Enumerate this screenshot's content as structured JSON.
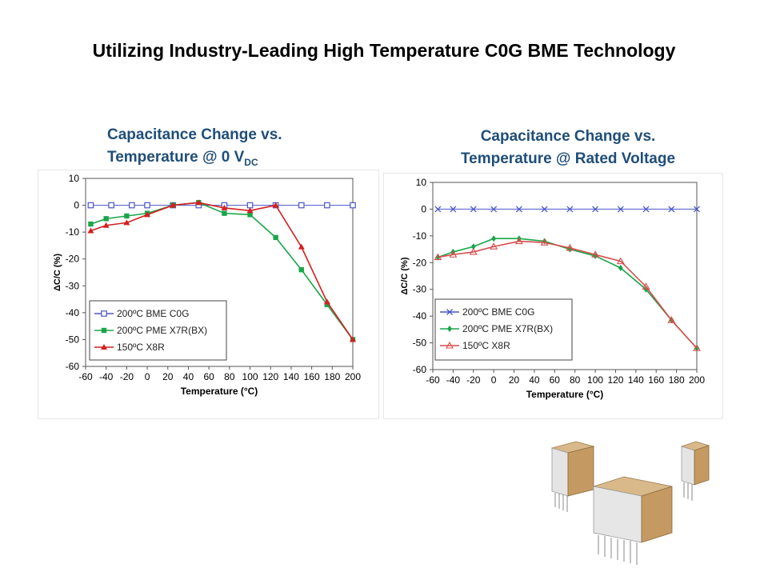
{
  "slide": {
    "title": "Utilizing Industry-Leading High Temperature C0G BME Technology"
  },
  "left_heading": {
    "line1": "Capacitance Change vs.",
    "line2": "Temperature @ 0 V",
    "sub": "DC"
  },
  "right_heading": {
    "line1": "Capacitance Change vs.",
    "line2": "Temperature @ Rated Voltage"
  },
  "colors": {
    "heading": "#1f4e79",
    "c0g": "#4a55c8",
    "x7r": "#1aa64a",
    "x8r_left": "#d42020",
    "x8r_right": "#d84b4b"
  },
  "chart_data": [
    {
      "type": "line",
      "xlabel": "Temperature (°C)",
      "ylabel": "ΔC/C (%)",
      "xlim": [
        -60,
        200
      ],
      "ylim": [
        -60,
        10
      ],
      "xticks": [
        -60,
        -40,
        -20,
        0,
        20,
        40,
        60,
        80,
        100,
        120,
        140,
        160,
        180,
        200
      ],
      "yticks": [
        10,
        0,
        -10,
        -20,
        -30,
        -40,
        -50,
        -60
      ],
      "legend_position": "bottom-left",
      "series": [
        {
          "name": "200ºC BME C0G",
          "marker": "square-open",
          "x": [
            -55,
            -35,
            -15,
            0,
            25,
            50,
            75,
            100,
            125,
            150,
            175,
            200
          ],
          "y": [
            0,
            0,
            0,
            0,
            0,
            0,
            0,
            0,
            0,
            0,
            0,
            0
          ]
        },
        {
          "name": "200ºC PME X7R(BX)",
          "marker": "square",
          "x": [
            -55,
            -40,
            -20,
            0,
            25,
            50,
            75,
            100,
            125,
            150,
            175,
            200
          ],
          "y": [
            -7,
            -5,
            -4,
            -3,
            0,
            1,
            -3,
            -3.5,
            -12,
            -24,
            -37,
            -50
          ]
        },
        {
          "name": "150ºC X8R",
          "marker": "triangle",
          "x": [
            -55,
            -40,
            -20,
            0,
            25,
            50,
            75,
            100,
            125,
            150,
            175,
            200
          ],
          "y": [
            -9.5,
            -7.5,
            -6.5,
            -3.5,
            0,
            1,
            -1,
            -2,
            0,
            -15.5,
            -36,
            -50
          ]
        }
      ]
    },
    {
      "type": "line",
      "xlabel": "Temperature (°C)",
      "ylabel": "ΔC/C (%)",
      "xlim": [
        -60,
        200
      ],
      "ylim": [
        -60,
        10
      ],
      "xticks": [
        -60,
        -40,
        -20,
        0,
        20,
        40,
        60,
        80,
        100,
        120,
        140,
        160,
        180,
        200
      ],
      "yticks": [
        10,
        0,
        -10,
        -20,
        -30,
        -40,
        -50,
        -60
      ],
      "legend_position": "bottom-left",
      "series": [
        {
          "name": "200ºC BME C0G",
          "marker": "x",
          "x": [
            -55,
            -40,
            -20,
            0,
            25,
            50,
            75,
            100,
            125,
            150,
            175,
            200
          ],
          "y": [
            0,
            0,
            0,
            0,
            0,
            0,
            0,
            0,
            0,
            0,
            0,
            0
          ]
        },
        {
          "name": "200ºC PME X7R(BX)",
          "marker": "diamond",
          "x": [
            -55,
            -40,
            -20,
            0,
            25,
            50,
            75,
            100,
            125,
            150,
            175,
            200
          ],
          "y": [
            -18,
            -16,
            -14,
            -11,
            -11,
            -12,
            -15,
            -17.5,
            -22,
            -30,
            -41.5,
            -52
          ]
        },
        {
          "name": "150ºC X8R",
          "marker": "triangle-open",
          "x": [
            -55,
            -40,
            -20,
            0,
            25,
            50,
            75,
            100,
            125,
            150,
            175,
            200
          ],
          "y": [
            -18,
            -17,
            -16,
            -14,
            -12,
            -12.5,
            -14.5,
            -17,
            -19.5,
            -29,
            -41.5,
            -52
          ]
        }
      ]
    }
  ]
}
